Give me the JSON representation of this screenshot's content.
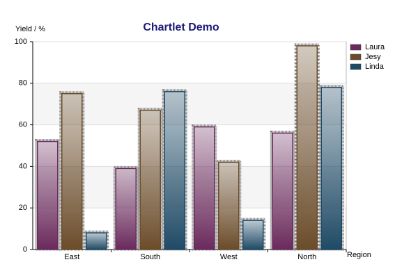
{
  "chart_data": {
    "type": "bar",
    "title": "Chartlet Demo",
    "y_label": "Yield / %",
    "x_label": "Region",
    "categories": [
      "East",
      "South",
      "West",
      "North"
    ],
    "series": [
      {
        "name": "Laura",
        "color": "#6a2a5c",
        "values": [
          52,
          39,
          59,
          56
        ]
      },
      {
        "name": "Jesy",
        "color": "#6b4c2a",
        "values": [
          75,
          67,
          42,
          98
        ]
      },
      {
        "name": "Linda",
        "color": "#1f4a66",
        "values": [
          8,
          76,
          14,
          78
        ]
      }
    ],
    "ylim": [
      0,
      100
    ],
    "yticks": [
      0,
      20,
      40,
      60,
      80,
      100
    ],
    "grid": true,
    "legend": "top-right"
  }
}
